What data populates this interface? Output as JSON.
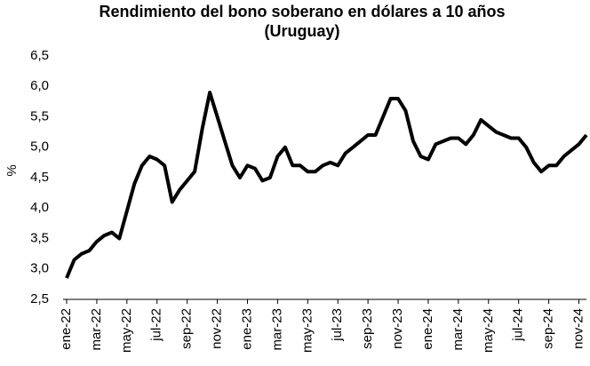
{
  "chart_data": {
    "type": "line",
    "title": [
      "Rendimiento del bono soberano en dólares a 10 años",
      "(Uruguay)"
    ],
    "y_label": "%",
    "categories": [
      "ene-22",
      null,
      null,
      null,
      "mar-22",
      null,
      null,
      null,
      "may-22",
      null,
      null,
      null,
      "jul-22",
      null,
      null,
      null,
      "sep-22",
      null,
      null,
      null,
      "nov-22",
      null,
      null,
      null,
      "ene-23",
      null,
      null,
      null,
      "mar-23",
      null,
      null,
      null,
      "may-23",
      null,
      null,
      null,
      "jul-23",
      null,
      null,
      null,
      "sep-23",
      null,
      null,
      null,
      "nov-23",
      null,
      null,
      null,
      "ene-24",
      null,
      null,
      null,
      "mar-24",
      null,
      null,
      null,
      "may-24",
      null,
      null,
      null,
      "jul-24",
      null,
      null,
      null,
      "sep-24",
      null,
      null,
      null,
      "nov-24",
      null
    ],
    "values": [
      2.85,
      3.15,
      3.25,
      3.3,
      3.45,
      3.55,
      3.6,
      3.5,
      3.95,
      4.4,
      4.7,
      4.85,
      4.8,
      4.7,
      4.1,
      4.3,
      4.45,
      4.6,
      5.3,
      5.9,
      5.5,
      5.1,
      4.7,
      4.5,
      4.7,
      4.65,
      4.45,
      4.5,
      4.85,
      5.0,
      4.7,
      4.7,
      4.6,
      4.6,
      4.7,
      4.75,
      4.7,
      4.9,
      5.0,
      5.1,
      5.2,
      5.2,
      5.5,
      5.8,
      5.8,
      5.6,
      5.1,
      4.85,
      4.8,
      5.05,
      5.1,
      5.15,
      5.15,
      5.05,
      5.2,
      5.45,
      5.35,
      5.25,
      5.2,
      5.15,
      5.15,
      5.0,
      4.75,
      4.6,
      4.7,
      4.7,
      4.85,
      4.95,
      5.05,
      5.2
    ],
    "color": "#000000",
    "ylim": [
      2.5,
      6.5
    ],
    "yticks": [
      {
        "value": 2.5,
        "label": "2,5"
      },
      {
        "value": 3.0,
        "label": "3,0"
      },
      {
        "value": 3.5,
        "label": "3,5"
      },
      {
        "value": 4.0,
        "label": "4,0"
      },
      {
        "value": 4.5,
        "label": "4,5"
      },
      {
        "value": 5.0,
        "label": "5,0"
      },
      {
        "value": 5.5,
        "label": "5,5"
      },
      {
        "value": 6.0,
        "label": "6,0"
      },
      {
        "value": 6.5,
        "label": "6,5"
      }
    ],
    "grid": false
  }
}
